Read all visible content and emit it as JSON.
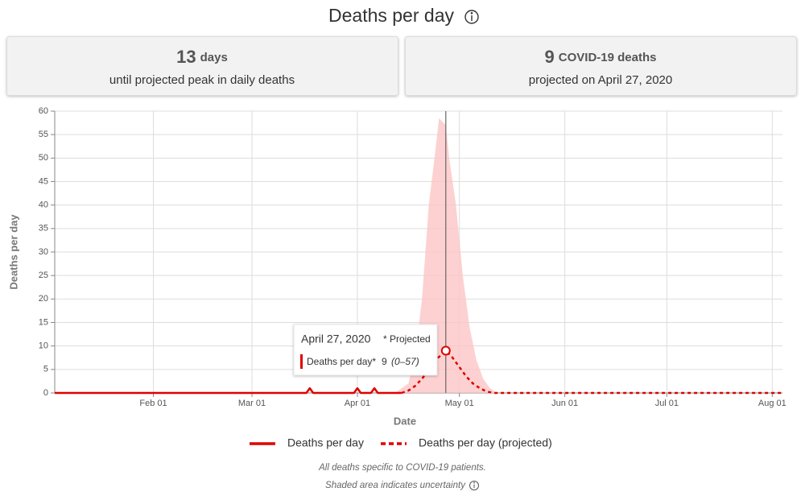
{
  "title": "Deaths per day",
  "cards": [
    {
      "value": 13,
      "unit": "days",
      "text": "until projected peak in daily deaths"
    },
    {
      "value": 9,
      "unit": "COVID-19 deaths",
      "text": "projected on April 27, 2020"
    }
  ],
  "chart_data": {
    "type": "line",
    "x_label": "Date",
    "y_label": "Deaths per day",
    "xlim": [
      "01-03",
      "08-04"
    ],
    "xticks": [
      {
        "value": "02-01",
        "label": "Feb 01"
      },
      {
        "value": "03-01",
        "label": "Mar 01"
      },
      {
        "value": "04-01",
        "label": "Apr 01"
      },
      {
        "value": "05-01",
        "label": "May 01"
      },
      {
        "value": "06-01",
        "label": "Jun 01"
      },
      {
        "value": "07-01",
        "label": "Jul 01"
      },
      {
        "value": "08-01",
        "label": "Aug 01"
      }
    ],
    "ylim": [
      0,
      60
    ],
    "yticks": [
      0,
      5,
      10,
      15,
      20,
      25,
      30,
      35,
      40,
      45,
      50,
      55,
      60
    ],
    "grid": true,
    "series": [
      {
        "name": "Deaths per day",
        "color": "#e00000",
        "dashed": false,
        "x": [
          "01-03",
          "03-17",
          "03-18",
          "03-19",
          "03-31",
          "04-01",
          "04-02",
          "04-05",
          "04-06",
          "04-07",
          "04-14"
        ],
        "values": [
          0,
          0,
          1,
          0,
          0,
          1,
          0,
          0,
          1,
          0,
          0
        ]
      },
      {
        "name": "Deaths per day (projected)",
        "color": "#e00000",
        "dashed": true,
        "x": [
          "04-14",
          "04-16",
          "04-18",
          "04-20",
          "04-22",
          "04-24",
          "04-27",
          "04-29",
          "05-01",
          "05-03",
          "05-05",
          "05-07",
          "05-09",
          "05-11",
          "08-04"
        ],
        "values": [
          0,
          0.5,
          1.5,
          3,
          5,
          7,
          9,
          7.5,
          5.5,
          3.5,
          2,
          1,
          0.3,
          0,
          0
        ]
      }
    ],
    "band": {
      "color": "#fcc5c5",
      "x": [
        "04-12",
        "04-16",
        "04-18",
        "04-20",
        "04-22",
        "04-24",
        "04-25",
        "04-27",
        "04-28",
        "04-30",
        "05-02",
        "05-04",
        "05-06",
        "05-08",
        "05-10",
        "05-12"
      ],
      "upper": [
        0,
        2,
        8,
        20,
        40,
        52,
        58.5,
        57,
        50,
        40,
        25,
        14,
        7,
        3,
        1,
        0
      ],
      "lower": [
        0,
        0,
        0,
        0,
        0,
        0,
        0,
        0,
        0,
        0,
        0,
        0,
        0,
        0,
        0,
        0
      ]
    },
    "tooltip": {
      "x": "04-27",
      "date": "April 27, 2020",
      "note": "* Projected",
      "series": "Deaths per day*",
      "range": "(0–57)"
    }
  },
  "notes": [
    "All deaths specific to COVID-19 patients.",
    "Shaded area indicates uncertainty"
  ]
}
